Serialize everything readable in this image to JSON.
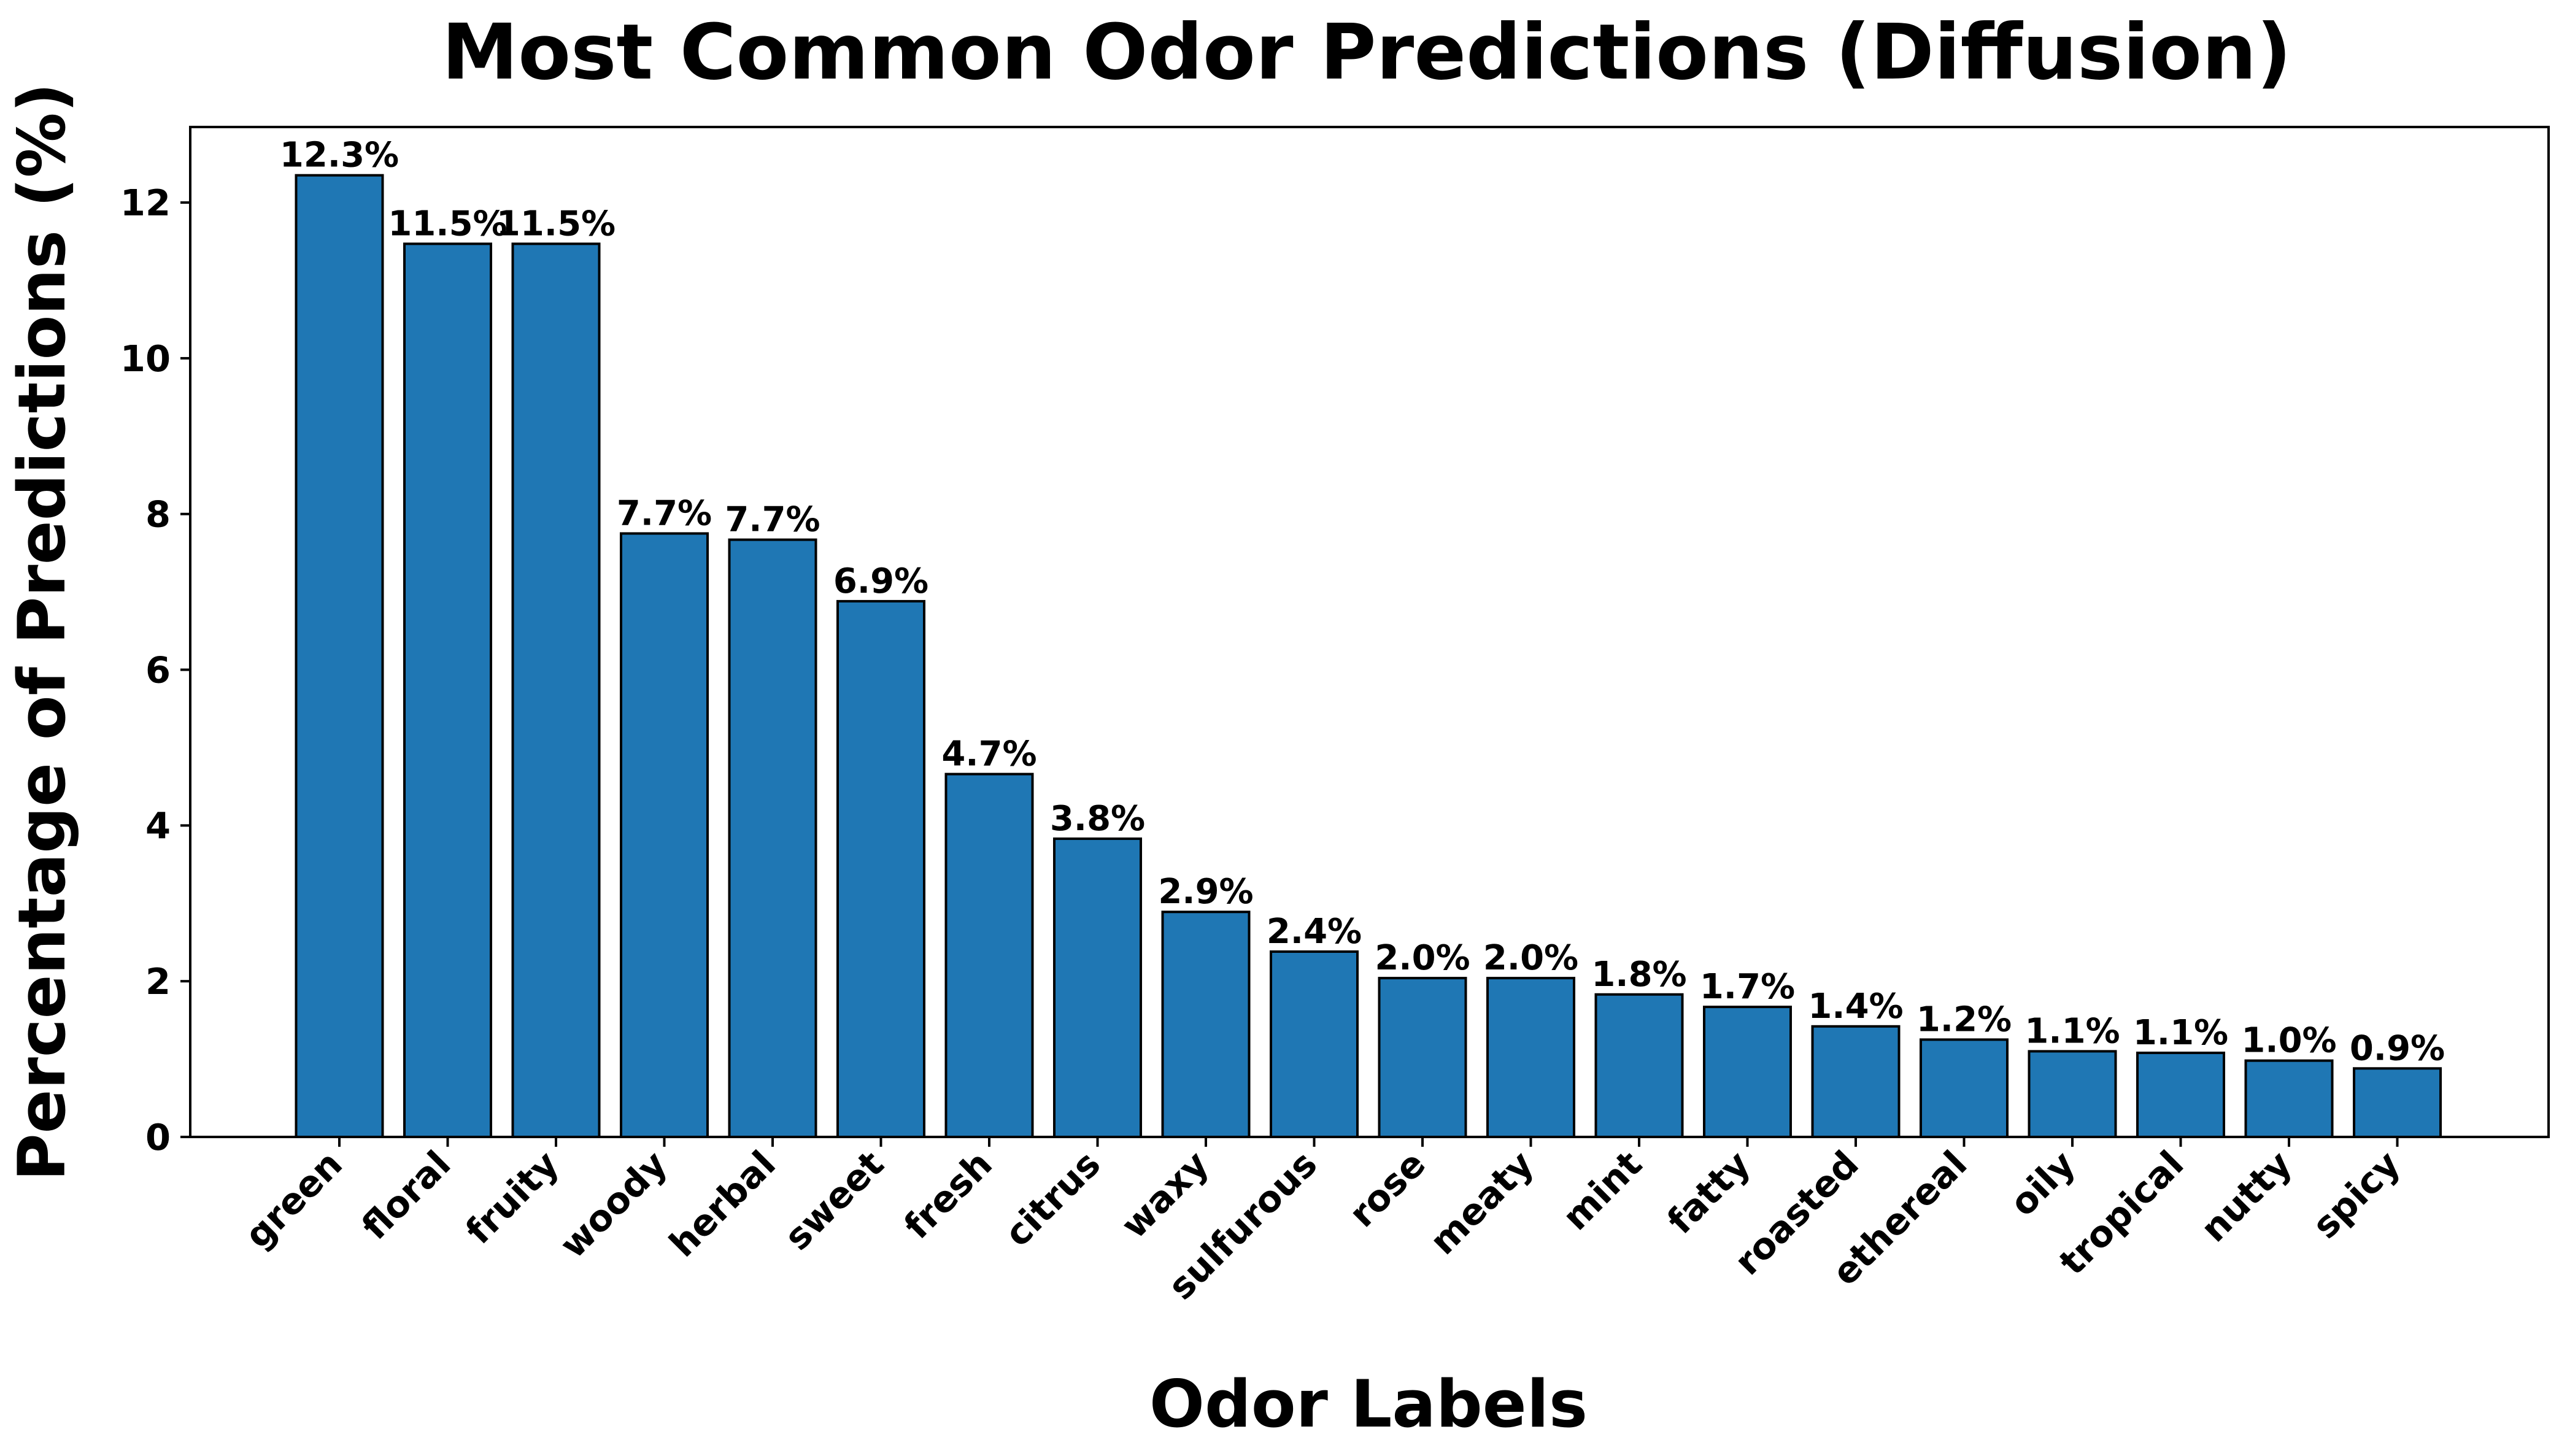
{
  "chart_data": {
    "type": "bar",
    "title": "Most Common Odor Predictions (Diffusion)",
    "xlabel": "Odor Labels",
    "ylabel": "Percentage of Predictions (%)",
    "categories": [
      "green",
      "floral",
      "fruity",
      "woody",
      "herbal",
      "sweet",
      "fresh",
      "citrus",
      "waxy",
      "sulfurous",
      "rose",
      "meaty",
      "mint",
      "fatty",
      "roasted",
      "ethereal",
      "oily",
      "tropical",
      "nutty",
      "spicy"
    ],
    "values": [
      12.35,
      11.47,
      11.47,
      7.75,
      7.67,
      6.88,
      4.66,
      3.83,
      2.89,
      2.38,
      2.04,
      2.04,
      1.83,
      1.67,
      1.42,
      1.25,
      1.1,
      1.08,
      0.98,
      0.88
    ],
    "data_labels": [
      "12.3%",
      "11.5%",
      "11.5%",
      "7.7%",
      "7.7%",
      "6.9%",
      "4.7%",
      "3.8%",
      "2.9%",
      "2.4%",
      "2.0%",
      "2.0%",
      "1.8%",
      "1.7%",
      "1.4%",
      "1.2%",
      "1.1%",
      "1.1%",
      "1.0%",
      "0.9%"
    ],
    "ylim": [
      0,
      12.97
    ],
    "yticks": [
      0,
      2,
      4,
      6,
      8,
      10,
      12
    ],
    "bar_color": "#1f77b4",
    "edge_color": "#000000",
    "grid": false,
    "legend": false
  }
}
